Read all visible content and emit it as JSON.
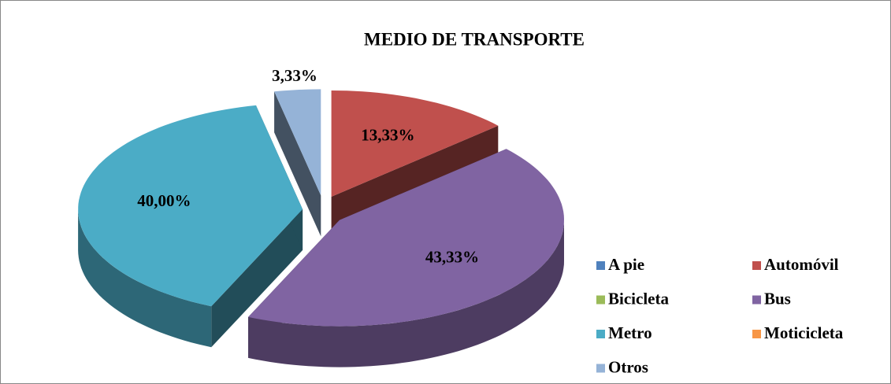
{
  "chart_data": {
    "type": "pie",
    "title": "MEDIO DE TRANSPORTE",
    "categories": [
      "A pie",
      "Automóvil",
      "Bicicleta",
      "Bus",
      "Metro",
      "Moticicleta",
      "Otros"
    ],
    "values": [
      0,
      13.33,
      0,
      43.33,
      40,
      0,
      3.33
    ],
    "value_labels": [
      null,
      "13,33%",
      null,
      "43,33%",
      "40,00%",
      null,
      "3,33%"
    ],
    "colors": [
      "#4f81bd",
      "#c0504d",
      "#9bbb59",
      "#8064a2",
      "#4bacc6",
      "#f79646",
      "#95b3d7"
    ],
    "legend": "right"
  }
}
